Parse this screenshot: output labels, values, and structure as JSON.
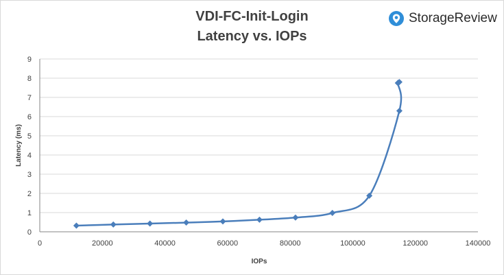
{
  "chart_data": {
    "type": "line",
    "title": "VDI-FC-Init-Login",
    "subtitle": "Latency vs. IOPs",
    "xlabel": "IOPs",
    "ylabel": "Latency (ms)",
    "xlim": [
      0,
      140000
    ],
    "ylim": [
      0,
      9
    ],
    "xticks": [
      "0",
      "20000",
      "40000",
      "60000",
      "80000",
      "100000",
      "120000",
      "140000"
    ],
    "yticks": [
      "0",
      "1",
      "2",
      "3",
      "4",
      "5",
      "6",
      "7",
      "8",
      "9"
    ],
    "grid": "horizontal",
    "line_color": "#4a7ebb",
    "series": [
      {
        "x": [
          11700,
          23500,
          35200,
          46800,
          58500,
          70200,
          81700,
          93500,
          105300,
          114900,
          114400,
          114900
        ],
        "y": [
          0.32,
          0.38,
          0.43,
          0.48,
          0.54,
          0.63,
          0.74,
          0.98,
          1.88,
          6.3,
          7.75,
          7.8
        ]
      }
    ]
  },
  "brand": {
    "name": "StorageReview",
    "color": "#2f8ed8"
  }
}
